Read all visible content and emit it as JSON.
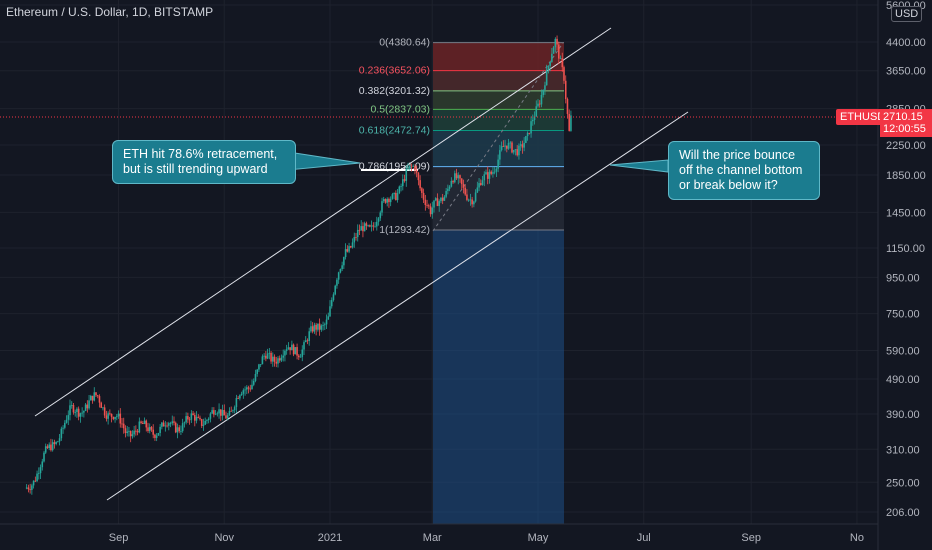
{
  "header": {
    "title": "Ethereum / U.S. Dollar, 1D, BITSTAMP",
    "currency": "USD"
  },
  "price_tag": {
    "symbol": "ETHUSD",
    "price": "2710.15",
    "countdown": "12:00:55"
  },
  "annotations": {
    "left": "ETH hit 78.6% retracement, but is still trending upward",
    "right": "Will the price bounce off the channel bottom or break below it?"
  },
  "colors": {
    "background": "#131722",
    "up": "#26a69a",
    "down": "#ef5350",
    "callout": "#1b7c8f",
    "price_line": "#f23645"
  },
  "chart_data": {
    "type": "candlestick",
    "y_scale": "log",
    "y_ticks": [
      "5600.00",
      "4400.00",
      "3650.00",
      "2850.00",
      "2250.00",
      "1850.00",
      "1450.00",
      "1150.00",
      "950.00",
      "750.00",
      "590.00",
      "490.00",
      "390.00",
      "310.00",
      "250.00",
      "206.00"
    ],
    "x_ticks": [
      "Sep",
      "Nov",
      "2021",
      "Mar",
      "May",
      "Jul",
      "Sep",
      "No"
    ],
    "fib_levels": [
      {
        "ratio": "0",
        "price": "4380.64"
      },
      {
        "ratio": "0.236",
        "price": "3652.06"
      },
      {
        "ratio": "0.382",
        "price": "3201.32"
      },
      {
        "ratio": "0.5",
        "price": "2837.03"
      },
      {
        "ratio": "0.618",
        "price": "2472.74"
      },
      {
        "ratio": "0.786",
        "price": "1954.09"
      },
      {
        "ratio": "1",
        "price": "1293.42"
      }
    ],
    "anchors": [
      {
        "date": "2020-07-10",
        "close": 240
      },
      {
        "date": "2020-07-25",
        "close": 320
      },
      {
        "date": "2020-08-05",
        "close": 395
      },
      {
        "date": "2020-08-20",
        "close": 430
      },
      {
        "date": "2020-09-05",
        "close": 350
      },
      {
        "date": "2020-09-25",
        "close": 355
      },
      {
        "date": "2020-10-20",
        "close": 380
      },
      {
        "date": "2020-11-05",
        "close": 400
      },
      {
        "date": "2020-11-25",
        "close": 560
      },
      {
        "date": "2020-12-15",
        "close": 600
      },
      {
        "date": "2020-12-31",
        "close": 740
      },
      {
        "date": "2021-01-10",
        "close": 1150
      },
      {
        "date": "2021-01-25",
        "close": 1350
      },
      {
        "date": "2021-02-05",
        "close": 1600
      },
      {
        "date": "2021-02-19",
        "close": 1954
      },
      {
        "date": "2021-02-28",
        "close": 1420
      },
      {
        "date": "2021-03-12",
        "close": 1800
      },
      {
        "date": "2021-03-25",
        "close": 1600
      },
      {
        "date": "2021-04-10",
        "close": 2150
      },
      {
        "date": "2021-04-25",
        "close": 2300
      },
      {
        "date": "2021-05-05",
        "close": 3500
      },
      {
        "date": "2021-05-11",
        "close": 4300
      },
      {
        "date": "2021-05-16",
        "close": 3600
      },
      {
        "date": "2021-05-19",
        "close": 2500
      },
      {
        "date": "2021-05-20",
        "close": 2710
      }
    ]
  }
}
